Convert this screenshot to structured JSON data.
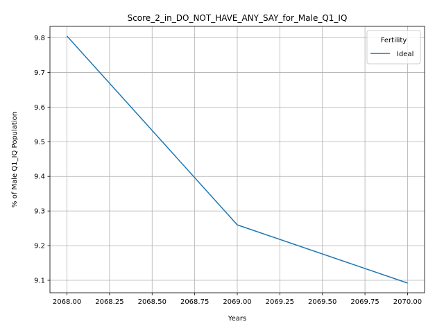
{
  "chart_data": {
    "type": "line",
    "title": "Score_2_in_DO_NOT_HAVE_ANY_SAY_for_Male_Q1_IQ",
    "xlabel": "Years",
    "ylabel": "% of Male Q1_IQ Population",
    "x": [
      2068,
      2069,
      2070
    ],
    "series": [
      {
        "name": "Ideal",
        "values": [
          9.805,
          9.26,
          9.092
        ],
        "color": "#1f77b4"
      }
    ],
    "xlim": [
      2067.9,
      2070.1
    ],
    "ylim": [
      9.064,
      9.833
    ],
    "xticks": [
      2068.0,
      2068.25,
      2068.5,
      2068.75,
      2069.0,
      2069.25,
      2069.5,
      2069.75,
      2070.0
    ],
    "xtick_labels": [
      "2068.00",
      "2068.25",
      "2068.50",
      "2068.75",
      "2069.00",
      "2069.25",
      "2069.50",
      "2069.75",
      "2070.00"
    ],
    "yticks": [
      9.1,
      9.2,
      9.3,
      9.4,
      9.5,
      9.6,
      9.7,
      9.8
    ],
    "ytick_labels": [
      "9.1",
      "9.2",
      "9.3",
      "9.4",
      "9.5",
      "9.6",
      "9.7",
      "9.8"
    ],
    "grid": true,
    "legend": {
      "title": "Fertility",
      "placement": "top-right"
    }
  }
}
